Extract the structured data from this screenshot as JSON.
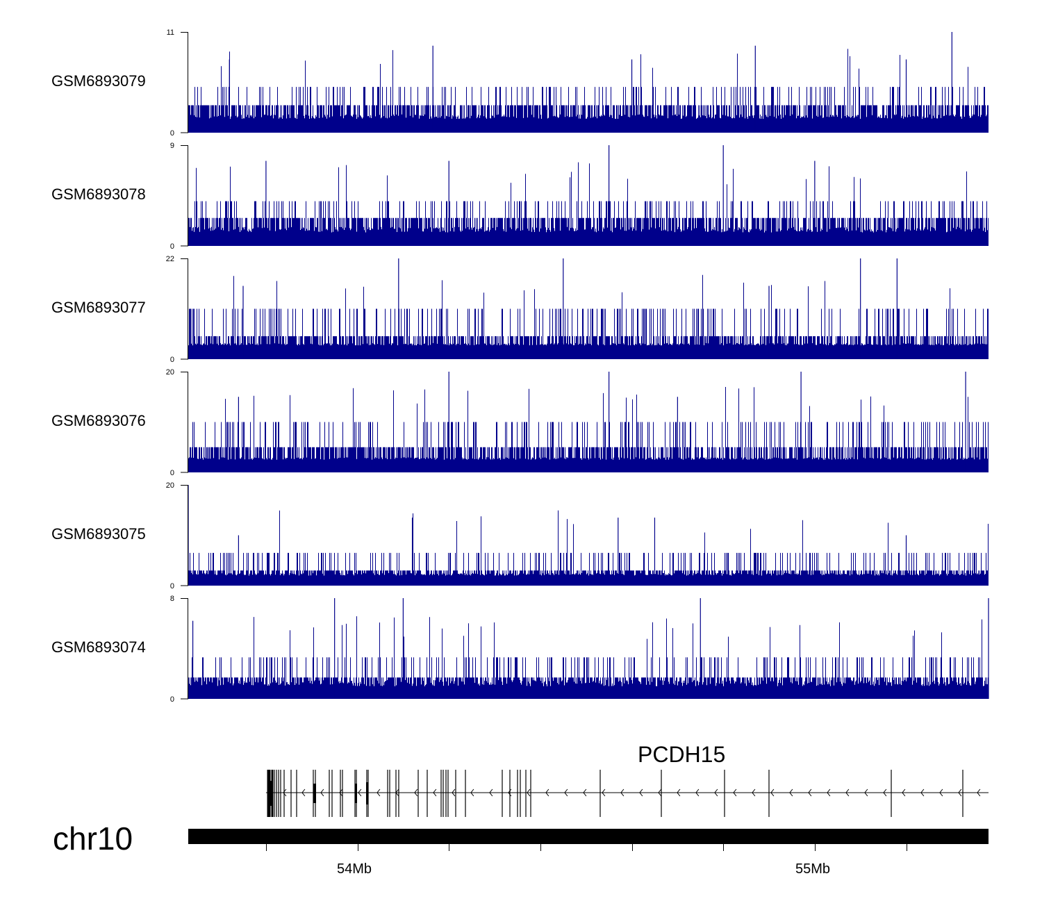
{
  "chart_data": {
    "type": "genome-browser-tracks",
    "chromosome": "chr10",
    "region_mb": [
      53.63,
      55.38
    ],
    "color": "#00008B",
    "tracks": [
      {
        "name": "GSM6893079",
        "ymax": 11,
        "ymin": 0,
        "baseline": 1.5,
        "band": 3,
        "mid": 5,
        "peaks": [
          {
            "pos": 54.165,
            "value": 9.5
          },
          {
            "pos": 54.87,
            "value": 9.5
          },
          {
            "pos": 55.3,
            "value": 11
          },
          {
            "pos": 53.72,
            "value": 8
          },
          {
            "pos": 54.6,
            "value": 8
          },
          {
            "pos": 55.2,
            "value": 8
          }
        ]
      },
      {
        "name": "GSM6893078",
        "ymax": 9,
        "ymin": 0,
        "baseline": 1.2,
        "band": 2.5,
        "mid": 4,
        "peaks": [
          {
            "pos": 54.55,
            "value": 9
          },
          {
            "pos": 54.8,
            "value": 9
          },
          {
            "pos": 53.8,
            "value": 7.6
          },
          {
            "pos": 54.2,
            "value": 7.6
          },
          {
            "pos": 55.0,
            "value": 7.6
          }
        ]
      },
      {
        "name": "GSM6893077",
        "ymax": 22,
        "ymin": 0,
        "baseline": 3,
        "band": 5,
        "mid": 11,
        "peaks": [
          {
            "pos": 54.09,
            "value": 22
          },
          {
            "pos": 54.45,
            "value": 22
          },
          {
            "pos": 55.1,
            "value": 22
          },
          {
            "pos": 55.18,
            "value": 22
          },
          {
            "pos": 53.75,
            "value": 16
          },
          {
            "pos": 54.9,
            "value": 16
          }
        ]
      },
      {
        "name": "GSM6893076",
        "ymax": 20,
        "ymin": 0,
        "baseline": 2.5,
        "band": 5,
        "mid": 10,
        "peaks": [
          {
            "pos": 54.2,
            "value": 20
          },
          {
            "pos": 54.55,
            "value": 20
          },
          {
            "pos": 54.97,
            "value": 20
          },
          {
            "pos": 55.33,
            "value": 20
          },
          {
            "pos": 53.74,
            "value": 15
          },
          {
            "pos": 54.7,
            "value": 15
          }
        ]
      },
      {
        "name": "GSM6893075",
        "ymax": 20,
        "ymin": 0,
        "baseline": 2,
        "band": 3,
        "mid": 6.5,
        "peaks": [
          {
            "pos": 53.63,
            "value": 20
          },
          {
            "pos": 54.12,
            "value": 13.5
          },
          {
            "pos": 54.57,
            "value": 13.5
          },
          {
            "pos": 54.65,
            "value": 13.5
          },
          {
            "pos": 53.74,
            "value": 10
          },
          {
            "pos": 55.2,
            "value": 10
          }
        ]
      },
      {
        "name": "GSM6893074",
        "ymax": 8,
        "ymin": 0,
        "baseline": 1,
        "band": 1.7,
        "mid": 3.3,
        "peaks": [
          {
            "pos": 55.38,
            "value": 8
          },
          {
            "pos": 53.95,
            "value": 8
          },
          {
            "pos": 54.1,
            "value": 8
          },
          {
            "pos": 54.75,
            "value": 8
          },
          {
            "pos": 53.64,
            "value": 6.2
          }
        ]
      }
    ],
    "gene": {
      "name": "PCDH15",
      "start_mb": 53.8,
      "end_mb": 55.38,
      "strand": "-"
    },
    "ticks_mb": [
      53.8,
      54.0,
      54.2,
      54.4,
      54.6,
      54.8,
      55.0,
      55.2
    ],
    "tick_labels": [
      {
        "pos_mb": 54.0,
        "label": "54Mb"
      },
      {
        "pos_mb": 55.0,
        "label": "55Mb"
      }
    ]
  }
}
